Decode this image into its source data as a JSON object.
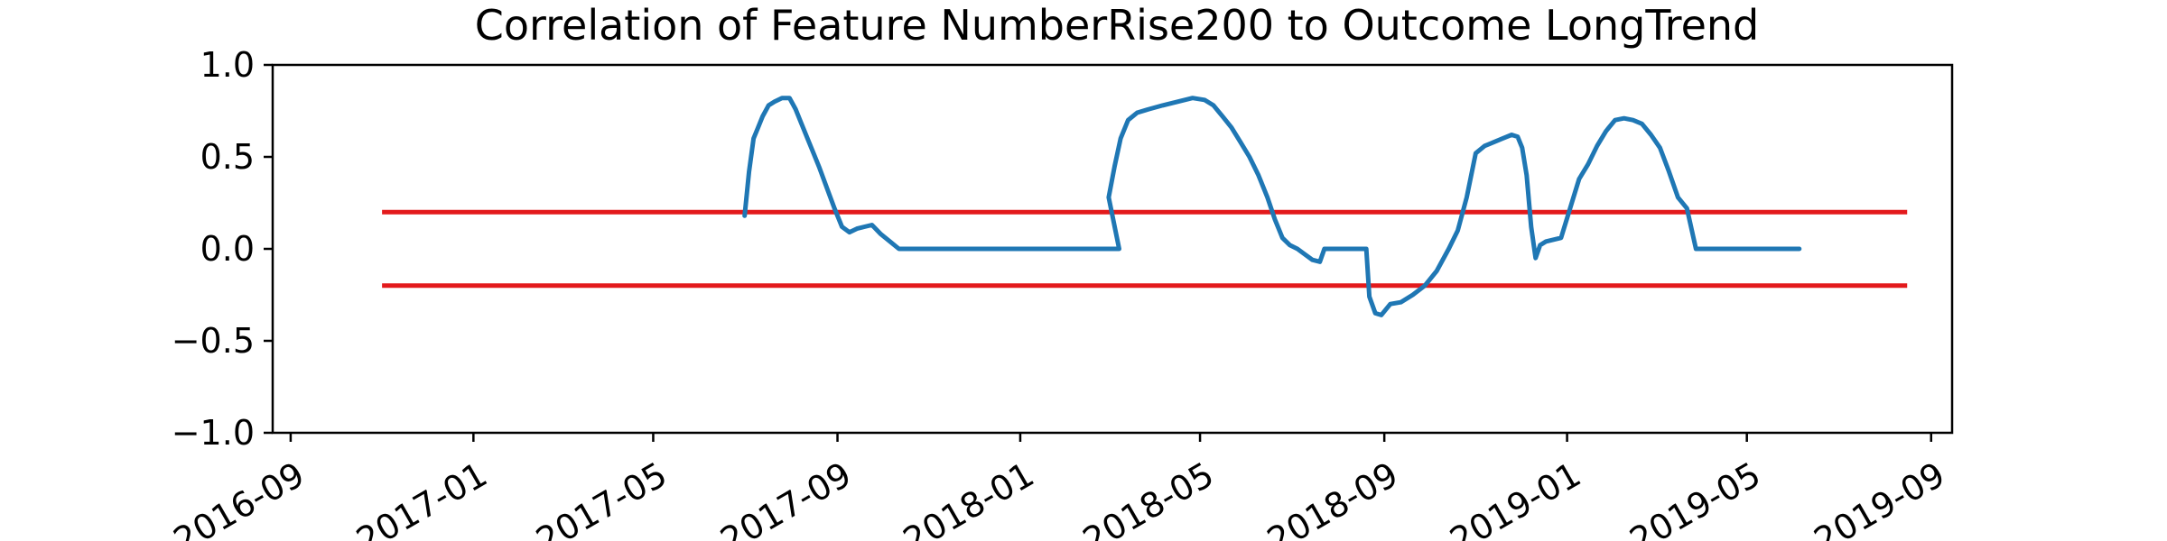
{
  "chart_data": {
    "type": "line",
    "title": "Correlation of Feature NumberRise200 to Outcome LongTrend",
    "xlabel": "",
    "ylabel": "",
    "xlim": [
      "2016-08-20",
      "2019-09-15"
    ],
    "ylim": [
      -1.0,
      1.0
    ],
    "grid": false,
    "x_ticks": [
      "2016-09",
      "2017-01",
      "2017-05",
      "2017-09",
      "2018-01",
      "2018-05",
      "2018-09",
      "2019-01",
      "2019-05",
      "2019-09"
    ],
    "y_ticks": [
      "1.0",
      "0.5",
      "0.0",
      "−0.5",
      "−1.0"
    ],
    "y_tick_values": [
      1.0,
      0.5,
      0.0,
      -0.5,
      -1.0
    ],
    "threshold_lines": [
      {
        "y": 0.2,
        "x_start": "2016-11-01",
        "x_end": "2019-08-16",
        "color": "#e31a1c"
      },
      {
        "y": -0.2,
        "x_start": "2016-11-01",
        "x_end": "2019-08-16",
        "color": "#e31a1c"
      }
    ],
    "series": [
      {
        "color": "#1f77b4",
        "x": [
          "2017-07-01",
          "2017-07-04",
          "2017-07-07",
          "2017-07-10",
          "2017-07-13",
          "2017-07-17",
          "2017-07-21",
          "2017-07-26",
          "2017-07-31",
          "2017-08-04",
          "2017-08-08",
          "2017-08-12",
          "2017-08-16",
          "2017-08-20",
          "2017-08-25",
          "2017-08-30",
          "2017-09-04",
          "2017-09-09",
          "2017-09-14",
          "2017-09-19",
          "2017-09-24",
          "2017-09-30",
          "2017-10-06",
          "2017-10-12",
          "2017-10-17",
          "2017-10-21",
          "2017-10-25",
          "2017-10-29",
          "2017-11-01",
          "2017-11-04",
          "2018-01-01",
          "2018-03-01",
          "2018-03-08",
          "2018-03-01",
          "2018-03-05",
          "2018-03-09",
          "2018-03-14",
          "2018-03-20",
          "2018-03-28",
          "2018-04-06",
          "2018-04-16",
          "2018-04-26",
          "2018-05-04",
          "2018-05-10",
          "2018-05-16",
          "2018-05-22",
          "2018-05-28",
          "2018-06-03",
          "2018-06-09",
          "2018-06-15",
          "2018-06-20",
          "2018-06-25",
          "2018-06-30",
          "2018-07-05",
          "2018-07-10",
          "2018-07-15",
          "2018-07-20",
          "2018-07-23",
          "2018-07-24",
          "2018-08-10",
          "2018-08-20",
          "2018-08-22",
          "2018-08-26",
          "2018-08-30",
          "2018-09-05",
          "2018-09-12",
          "2018-09-20",
          "2018-09-28",
          "2018-10-06",
          "2018-10-14",
          "2018-10-20",
          "2018-10-26",
          "2018-11-01",
          "2018-11-07",
          "2018-11-13",
          "2018-11-19",
          "2018-11-25",
          "2018-11-29",
          "2018-12-02",
          "2018-12-05",
          "2018-12-08",
          "2018-12-11",
          "2018-12-14",
          "2018-12-18",
          "2018-12-23",
          "2018-12-28",
          "2019-01-03",
          "2019-01-09",
          "2019-01-15",
          "2019-01-21",
          "2019-01-27",
          "2019-02-02",
          "2019-02-08",
          "2019-02-14",
          "2019-02-20",
          "2019-02-26",
          "2019-03-04",
          "2019-03-10",
          "2019-03-16",
          "2019-03-22",
          "2019-03-28",
          "2019-04-03",
          "2019-04-09",
          "2019-04-14",
          "2019-04-17",
          "2019-04-19",
          "2019-06-05"
        ],
        "y": [
          0.18,
          0.42,
          0.6,
          0.66,
          0.72,
          0.78,
          0.8,
          0.82,
          0.82,
          0.76,
          0.68,
          0.6,
          0.52,
          0.44,
          0.33,
          0.22,
          0.12,
          0.09,
          0.11,
          0.12,
          0.13,
          0.08,
          0.04,
          0.0,
          0.0,
          0.0,
          0.0,
          0.0,
          0.0,
          0.0,
          0.0,
          0.0,
          0.0,
          0.28,
          0.45,
          0.6,
          0.7,
          0.74,
          0.76,
          0.78,
          0.8,
          0.82,
          0.81,
          0.78,
          0.72,
          0.66,
          0.58,
          0.5,
          0.4,
          0.28,
          0.16,
          0.06,
          0.02,
          0.0,
          -0.03,
          -0.06,
          -0.07,
          0.0,
          0.0,
          0.0,
          0.0,
          -0.26,
          -0.35,
          -0.36,
          -0.3,
          -0.29,
          -0.25,
          -0.2,
          -0.12,
          0.0,
          0.1,
          0.28,
          0.52,
          0.56,
          0.58,
          0.6,
          0.62,
          0.61,
          0.55,
          0.4,
          0.12,
          -0.05,
          0.02,
          0.04,
          0.05,
          0.06,
          0.22,
          0.38,
          0.46,
          0.56,
          0.64,
          0.7,
          0.71,
          0.7,
          0.68,
          0.62,
          0.55,
          0.42,
          0.28,
          0.22,
          0.0,
          0.0,
          0.0,
          0.0,
          0.0,
          0.0,
          0.0
        ]
      }
    ]
  }
}
